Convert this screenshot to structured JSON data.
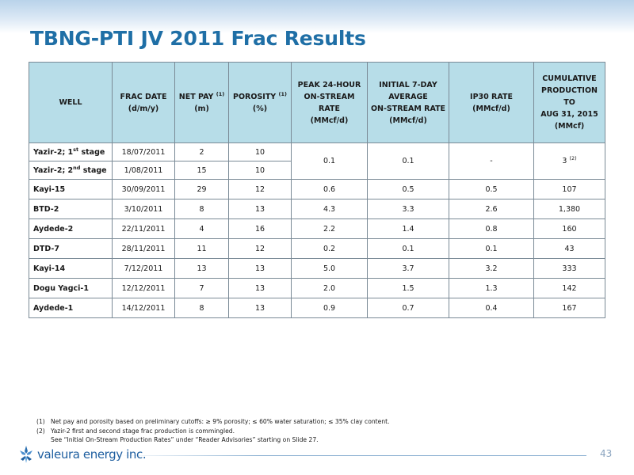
{
  "title": "TBNG-PTI JV 2011 Frac Results",
  "table": {
    "headers": [
      {
        "text": "WELL",
        "sup": ""
      },
      {
        "text": "FRAC DATE\n(d/m/y)",
        "sup": ""
      },
      {
        "text": "NET PAY",
        "sup": "(1)",
        "after": "\n(m)"
      },
      {
        "text": "POROSITY",
        "sup": "(1)",
        "after": "\n(%)"
      },
      {
        "text": "PEAK 24-HOUR\nON-STREAM\nRATE\n(MMcf/d)",
        "sup": ""
      },
      {
        "text": "INITIAL 7-DAY\nAVERAGE\nON-STREAM RATE\n(MMcf/d)",
        "sup": ""
      },
      {
        "text": "IP30 RATE\n(MMcf/d)",
        "sup": ""
      },
      {
        "text": "CUMULATIVE\nPRODUCTION TO\nAUG 31, 2015\n(MMcf)",
        "sup": ""
      }
    ],
    "yazir": {
      "row1": {
        "well": "Yazir-2; 1",
        "well_sup": "st",
        "well_after": " stage",
        "date": "18/07/2011",
        "net_pay": "2",
        "porosity": "10"
      },
      "row2": {
        "well": "Yazir-2; 2",
        "well_sup": "nd",
        "well_after": " stage",
        "date": "1/08/2011",
        "net_pay": "15",
        "porosity": "10"
      },
      "peak": "0.1",
      "initial": "0.1",
      "ip30": "-",
      "cumulative": "3",
      "cumulative_sup": "(2)"
    },
    "rows": [
      {
        "well": "Kayi-15",
        "date": "30/09/2011",
        "net_pay": "29",
        "porosity": "12",
        "peak": "0.6",
        "initial": "0.5",
        "ip30": "0.5",
        "cumulative": "107"
      },
      {
        "well": "BTD-2",
        "date": "3/10/2011",
        "net_pay": "8",
        "porosity": "13",
        "peak": "4.3",
        "initial": "3.3",
        "ip30": "2.6",
        "cumulative": "1,380"
      },
      {
        "well": "Aydede-2",
        "date": "22/11/2011",
        "net_pay": "4",
        "porosity": "16",
        "peak": "2.2",
        "initial": "1.4",
        "ip30": "0.8",
        "cumulative": "160"
      },
      {
        "well": "DTD-7",
        "date": "28/11/2011",
        "net_pay": "11",
        "porosity": "12",
        "peak": "0.2",
        "initial": "0.1",
        "ip30": "0.1",
        "cumulative": "43"
      },
      {
        "well": "Kayi-14",
        "date": "7/12/2011",
        "net_pay": "13",
        "porosity": "13",
        "peak": "5.0",
        "initial": "3.7",
        "ip30": "3.2",
        "cumulative": "333"
      },
      {
        "well": "Dogu Yagci-1",
        "date": "12/12/2011",
        "net_pay": "7",
        "porosity": "13",
        "peak": "2.0",
        "initial": "1.5",
        "ip30": "1.3",
        "cumulative": "142"
      },
      {
        "well": "Aydede-1",
        "date": "14/12/2011",
        "net_pay": "8",
        "porosity": "13",
        "peak": "0.9",
        "initial": "0.7",
        "ip30": "0.4",
        "cumulative": "167"
      }
    ]
  },
  "footnotes": {
    "n1_num": "(1)",
    "n1_text": "Net pay and porosity based on preliminary cutoffs: ≥ 9% porosity; ≤ 60% water saturation; ≤ 35% clay content.",
    "n2_num": "(2)",
    "n2_text": "Yazir-2 first and second stage frac production is commingled.",
    "n3_text": "See “Initial On-Stream Production Rates” under “Reader Advisories” starting on Slide 27."
  },
  "logo": {
    "text": "valeura energy inc.",
    "icon": "valeura-logo-icon"
  },
  "page_number": "43",
  "colors": {
    "title": "#1f6fa6",
    "header_fill": "#b7dde8",
    "logo": "#1f5fa0"
  }
}
